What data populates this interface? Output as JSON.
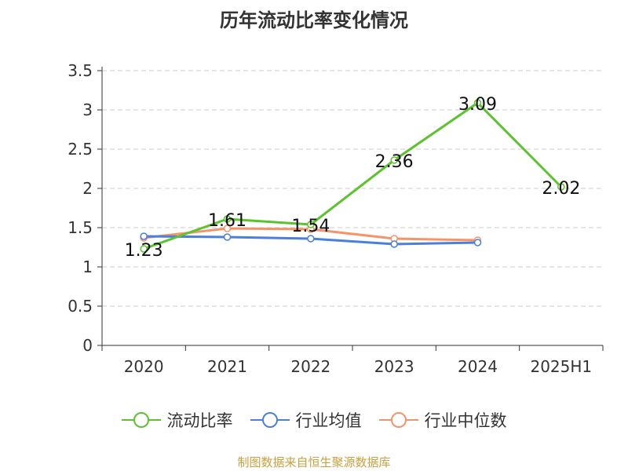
{
  "chart_data": {
    "type": "line",
    "title": "历年流动比率变化情况",
    "categories": [
      "2020",
      "2021",
      "2022",
      "2023",
      "2024",
      "2025H1"
    ],
    "ylim": [
      0,
      3.5
    ],
    "yticks": [
      "0",
      "0.5",
      "1",
      "1.5",
      "2",
      "2.5",
      "3",
      "3.5"
    ],
    "grid": true,
    "legend_position": "bottom",
    "series": [
      {
        "name": "流动比率",
        "color": "#5cc22e",
        "values": [
          1.23,
          1.61,
          1.54,
          2.36,
          3.09,
          2.02
        ],
        "labels": [
          "1.23",
          "1.61",
          "1.54",
          "2.36",
          "3.09",
          "2.02"
        ]
      },
      {
        "name": "行业均值",
        "color": "#4a7fdb",
        "values": [
          1.39,
          1.38,
          1.36,
          1.29,
          1.31,
          null
        ]
      },
      {
        "name": "行业中位数",
        "color": "#f39568",
        "values": [
          1.37,
          1.49,
          1.48,
          1.36,
          1.34,
          null
        ]
      }
    ]
  },
  "source": "制图数据来自恒生聚源数据库"
}
